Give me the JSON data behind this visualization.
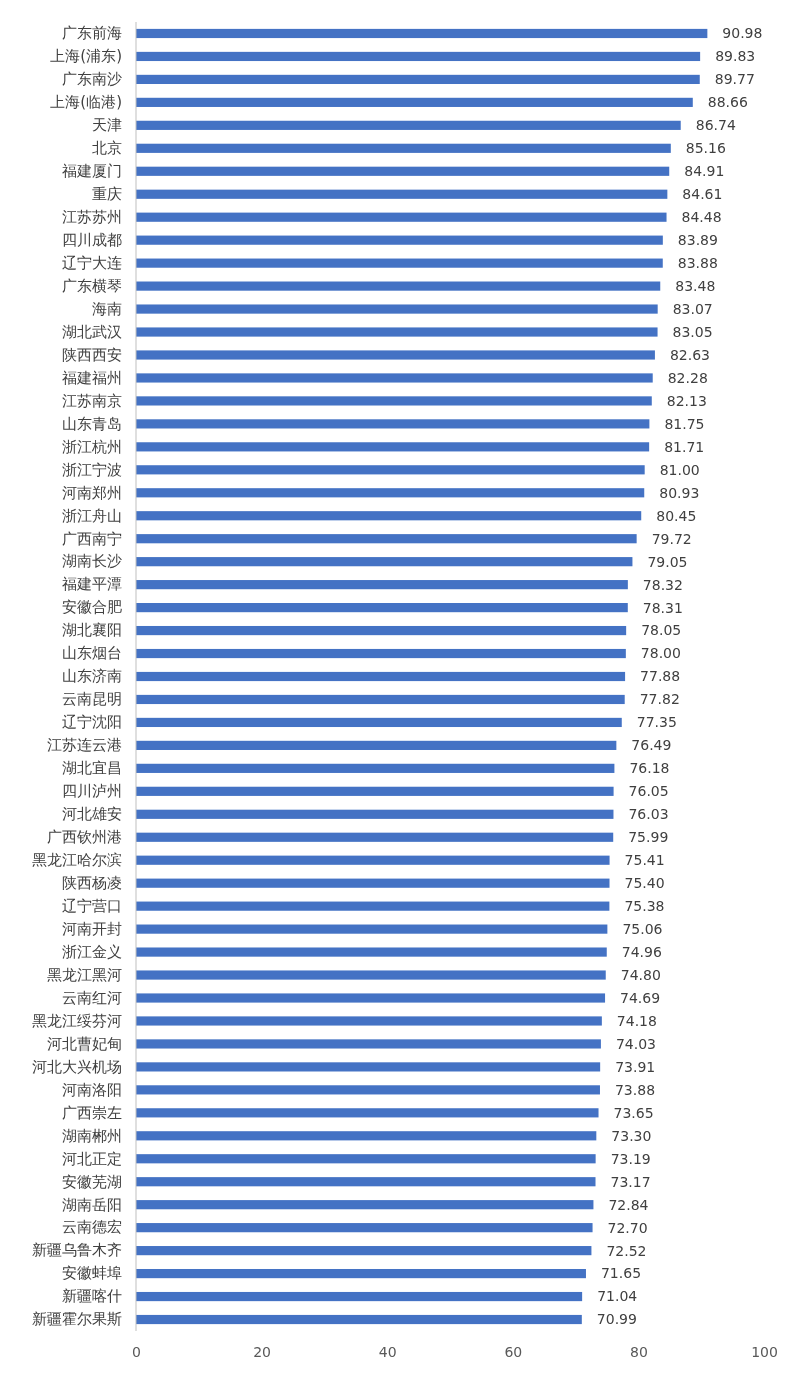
{
  "chart_data": {
    "type": "bar",
    "orientation": "horizontal",
    "categories": [
      "广东前海",
      "上海(浦东)",
      "广东南沙",
      "上海(临港)",
      "天津",
      "北京",
      "福建厦门",
      "重庆",
      "江苏苏州",
      "四川成都",
      "辽宁大连",
      "广东横琴",
      "海南",
      "湖北武汉",
      "陕西西安",
      "福建福州",
      "江苏南京",
      "山东青岛",
      "浙江杭州",
      "浙江宁波",
      "河南郑州",
      "浙江舟山",
      "广西南宁",
      "湖南长沙",
      "福建平潭",
      "安徽合肥",
      "湖北襄阳",
      "山东烟台",
      "山东济南",
      "云南昆明",
      "辽宁沈阳",
      "江苏连云港",
      "湖北宜昌",
      "四川泸州",
      "河北雄安",
      "广西钦州港",
      "黑龙江哈尔滨",
      "陕西杨凌",
      "辽宁营口",
      "河南开封",
      "浙江金义",
      "黑龙江黑河",
      "云南红河",
      "黑龙江绥芬河",
      "河北曹妃甸",
      "河北大兴机场",
      "河南洛阳",
      "广西崇左",
      "湖南郴州",
      "河北正定",
      "安徽芜湖",
      "湖南岳阳",
      "云南德宏",
      "新疆乌鲁木齐",
      "安徽蚌埠",
      "新疆喀什",
      "新疆霍尔果斯"
    ],
    "values": [
      90.98,
      89.83,
      89.77,
      88.66,
      86.74,
      85.16,
      84.91,
      84.61,
      84.48,
      83.89,
      83.88,
      83.48,
      83.07,
      83.05,
      82.63,
      82.28,
      82.13,
      81.75,
      81.71,
      81.0,
      80.93,
      80.45,
      79.72,
      79.05,
      78.32,
      78.31,
      78.05,
      78.0,
      77.88,
      77.82,
      77.35,
      76.49,
      76.18,
      76.05,
      76.03,
      75.99,
      75.41,
      75.4,
      75.38,
      75.06,
      74.96,
      74.8,
      74.69,
      74.18,
      74.03,
      73.91,
      73.88,
      73.65,
      73.3,
      73.19,
      73.17,
      72.84,
      72.7,
      72.52,
      71.65,
      71.04,
      70.99
    ],
    "value_labels": [
      "90.98",
      "89.83",
      "89.77",
      "88.66",
      "86.74",
      "85.16",
      "84.91",
      "84.61",
      "84.48",
      "83.89",
      "83.88",
      "83.48",
      "83.07",
      "83.05",
      "82.63",
      "82.28",
      "82.13",
      "81.75",
      "81.71",
      "81.00",
      "80.93",
      "80.45",
      "79.72",
      "79.05",
      "78.32",
      "78.31",
      "78.05",
      "78.00",
      "77.88",
      "77.82",
      "77.35",
      "76.49",
      "76.18",
      "76.05",
      "76.03",
      "75.99",
      "75.41",
      "75.40",
      "75.38",
      "75.06",
      "74.96",
      "74.80",
      "74.69",
      "74.18",
      "74.03",
      "73.91",
      "73.88",
      "73.65",
      "73.30",
      "73.19",
      "73.17",
      "72.84",
      "72.70",
      "72.52",
      "71.65",
      "71.04",
      "70.99"
    ],
    "color": "#4472c4",
    "xlim": [
      0,
      100
    ],
    "xticks": [
      0,
      20,
      40,
      60,
      80,
      100
    ]
  }
}
